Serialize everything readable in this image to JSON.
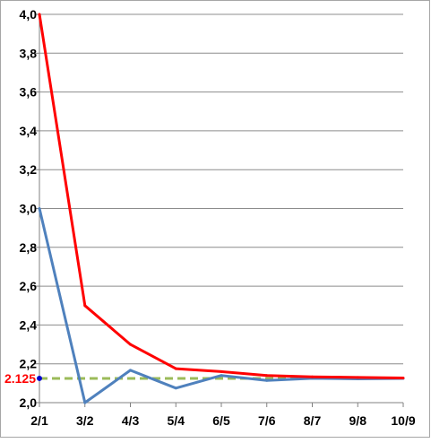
{
  "chart_data": {
    "type": "line",
    "categories": [
      "2/1",
      "3/2",
      "4/3",
      "5/4",
      "6/5",
      "7/6",
      "8/7",
      "9/8",
      "10/9"
    ],
    "x": [
      2.0,
      1.5,
      1.3333,
      1.25,
      1.2,
      1.1667,
      1.1429,
      1.125,
      1.1111
    ],
    "series": [
      {
        "values": [
          3.0,
          2.0,
          2.1667,
          2.075,
          2.14,
          2.1143,
          2.125,
          2.1222,
          2.1245
        ],
        "color": "#4f81bd"
      },
      {
        "values": [
          4.0,
          2.5,
          2.3,
          2.175,
          2.16,
          2.14,
          2.133,
          2.13,
          2.127
        ],
        "color": "#ff0000"
      }
    ],
    "reference_line": {
      "value": 2.125,
      "label": "2.125",
      "color": "#9bbb59",
      "style": "dashed",
      "label_color": "#ff0000",
      "marker_color": "#0000cc"
    },
    "yticks": [
      "2,0",
      "2,2",
      "2,4",
      "2,6",
      "2,8",
      "3,0",
      "3,2",
      "3,4",
      "3,6",
      "3,8",
      "4,0"
    ],
    "ylim": [
      2.0,
      4.0
    ],
    "grid": true,
    "title": "",
    "xlabel": "",
    "ylabel": ""
  }
}
